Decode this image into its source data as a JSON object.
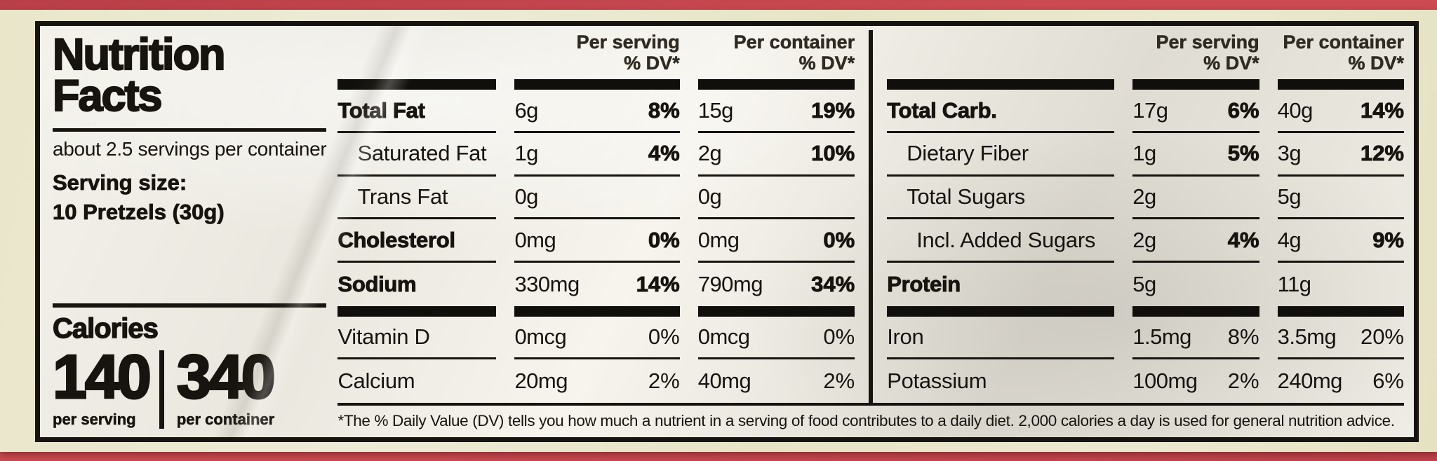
{
  "colors": {
    "package_red": "#cc4b52",
    "label_cream": "#e9e6ca",
    "panel_white": "#f3f1ea",
    "ink_black": "#17130e"
  },
  "left_panel": {
    "title_line1": "Nutrition",
    "title_line2": "Facts",
    "servings_text": "about 2.5 servings per container",
    "serving_size_label": "Serving size:",
    "serving_size_value": "10 Pretzels (30g)",
    "calories_label": "Calories",
    "calories_per_serving": "140",
    "calories_per_container": "340",
    "per_serving_caption": "per serving",
    "per_container_caption": "per container"
  },
  "table": {
    "header": {
      "per_serving": "Per serving",
      "per_container": "Per container",
      "dv": "% DV*"
    },
    "left_rows": [
      {
        "name": "Total Fat",
        "ps_amt": "6g",
        "ps_dv": "8%",
        "pc_amt": "15g",
        "pc_dv": "19%"
      },
      {
        "name": "Saturated Fat",
        "ps_amt": "1g",
        "ps_dv": "4%",
        "pc_amt": "2g",
        "pc_dv": "10%"
      },
      {
        "name": "Trans Fat",
        "ps_amt": "0g",
        "ps_dv": "",
        "pc_amt": "0g",
        "pc_dv": ""
      },
      {
        "name": "Cholesterol",
        "ps_amt": "0mg",
        "ps_dv": "0%",
        "pc_amt": "0mg",
        "pc_dv": "0%"
      },
      {
        "name": "Sodium",
        "ps_amt": "330mg",
        "ps_dv": "14%",
        "pc_amt": "790mg",
        "pc_dv": "34%"
      },
      {
        "name": "Vitamin D",
        "ps_amt": "0mcg",
        "ps_dv": "0%",
        "pc_amt": "0mcg",
        "pc_dv": "0%"
      },
      {
        "name": "Calcium",
        "ps_amt": "20mg",
        "ps_dv": "2%",
        "pc_amt": "40mg",
        "pc_dv": "2%"
      }
    ],
    "right_rows": [
      {
        "name": "Total Carb.",
        "ps_amt": "17g",
        "ps_dv": "6%",
        "pc_amt": "40g",
        "pc_dv": "14%"
      },
      {
        "name": "Dietary Fiber",
        "ps_amt": "1g",
        "ps_dv": "5%",
        "pc_amt": "3g",
        "pc_dv": "12%"
      },
      {
        "name": "Total Sugars",
        "ps_amt": "2g",
        "ps_dv": "",
        "pc_amt": "5g",
        "pc_dv": ""
      },
      {
        "name": "Incl. Added Sugars",
        "ps_amt": "2g",
        "ps_dv": "4%",
        "pc_amt": "4g",
        "pc_dv": "9%"
      },
      {
        "name": "Protein",
        "ps_amt": "5g",
        "ps_dv": "",
        "pc_amt": "11g",
        "pc_dv": ""
      },
      {
        "name": "Iron",
        "ps_amt": "1.5mg",
        "ps_dv": "8%",
        "pc_amt": "3.5mg",
        "pc_dv": "20%"
      },
      {
        "name": "Potassium",
        "ps_amt": "100mg",
        "ps_dv": "2%",
        "pc_amt": "240mg",
        "pc_dv": "6%"
      }
    ]
  },
  "footnote": "*The % Daily Value (DV) tells you how much a nutrient in a serving of food contributes to a daily diet. 2,000 calories a day is used for general nutrition advice."
}
